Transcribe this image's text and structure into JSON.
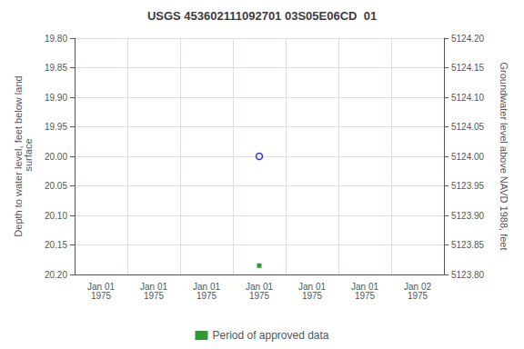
{
  "chart_data": {
    "type": "scatter",
    "title": "USGS 453602111092701 03S05E06CD  01",
    "categories": [
      "Jan 01\n1975",
      "Jan 01\n1975",
      "Jan 01\n1975",
      "Jan 01\n1975",
      "Jan 01\n1975",
      "Jan 01\n1975",
      "Jan 02\n1975"
    ],
    "ylabel": "Depth to water level, feet below land\n surface",
    "y2label": "Groundwater level above NAVD 1988, feet",
    "ylim": [
      20.2,
      19.8
    ],
    "yticks": [
      {
        "value": 19.8,
        "label": "19.80"
      },
      {
        "value": 19.85,
        "label": "19.85"
      },
      {
        "value": 19.9,
        "label": "19.90"
      },
      {
        "value": 19.95,
        "label": "19.95"
      },
      {
        "value": 20,
        "label": "20.00"
      },
      {
        "value": 20.05,
        "label": "20.05"
      },
      {
        "value": 20.1,
        "label": "20.10"
      },
      {
        "value": 20.15,
        "label": "20.15"
      },
      {
        "value": 20.2,
        "label": "20.20"
      }
    ],
    "y2lim": [
      5123.8,
      5124.2
    ],
    "y2ticks": [
      {
        "value": 5124.2,
        "label": "5124.20"
      },
      {
        "value": 5124.15,
        "label": "5124.15"
      },
      {
        "value": 5124.1,
        "label": "5124.10"
      },
      {
        "value": 5124.05,
        "label": "5124.05"
      },
      {
        "value": 5124,
        "label": "5124.00"
      },
      {
        "value": 5123.95,
        "label": "5123.95"
      },
      {
        "value": 5123.9,
        "label": "5123.90"
      },
      {
        "value": 5123.85,
        "label": "5123.85"
      },
      {
        "value": 5123.8,
        "label": "5123.80"
      }
    ],
    "series": [
      {
        "color": "#0000cc",
        "marker": "open_circle",
        "values": [
          null,
          null,
          null,
          20.0,
          null,
          null,
          null
        ]
      },
      {
        "name": "Period of approved data",
        "color": "#008000",
        "marker": "square",
        "values": [
          null,
          null,
          null,
          20.185,
          null,
          null,
          null
        ]
      }
    ],
    "grid": true,
    "legend": "bottom"
  }
}
